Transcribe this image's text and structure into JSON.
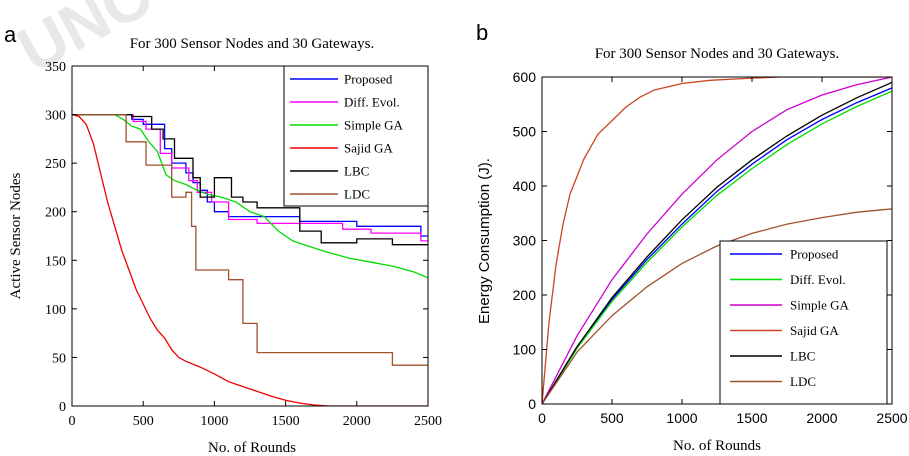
{
  "chart_data": [
    {
      "panel": "a",
      "type": "line",
      "title": "For 300 Sensor Nodes and 30 Gateways.",
      "xlabel": "No. of Rounds",
      "ylabel": "Active Sensor Nodes",
      "xlim": [
        0,
        2500
      ],
      "ylim": [
        0,
        350
      ],
      "xticks": [
        0,
        500,
        1000,
        1500,
        2000,
        2500
      ],
      "yticks": [
        0,
        50,
        100,
        150,
        200,
        250,
        300,
        350
      ],
      "legend_position": "top-right",
      "series": [
        {
          "name": "Proposed",
          "color": "#0000ff",
          "step": true,
          "points": [
            [
              0,
              300
            ],
            [
              420,
              300
            ],
            [
              420,
              295
            ],
            [
              500,
              295
            ],
            [
              500,
              290
            ],
            [
              650,
              290
            ],
            [
              650,
              265
            ],
            [
              700,
              265
            ],
            [
              700,
              250
            ],
            [
              800,
              250
            ],
            [
              800,
              240
            ],
            [
              850,
              240
            ],
            [
              850,
              230
            ],
            [
              900,
              230
            ],
            [
              900,
              222
            ],
            [
              950,
              222
            ],
            [
              950,
              210
            ],
            [
              1000,
              210
            ],
            [
              1000,
              200
            ],
            [
              1100,
              200
            ],
            [
              1100,
              195
            ],
            [
              1600,
              195
            ],
            [
              1600,
              190
            ],
            [
              2000,
              190
            ],
            [
              2000,
              185
            ],
            [
              2450,
              185
            ],
            [
              2450,
              175
            ],
            [
              2500,
              175
            ]
          ]
        },
        {
          "name": "Diff. Evol.",
          "color": "#ff00ff",
          "step": true,
          "points": [
            [
              0,
              300
            ],
            [
              430,
              300
            ],
            [
              430,
              293
            ],
            [
              520,
              293
            ],
            [
              520,
              285
            ],
            [
              620,
              285
            ],
            [
              620,
              260
            ],
            [
              700,
              260
            ],
            [
              700,
              245
            ],
            [
              820,
              245
            ],
            [
              820,
              232
            ],
            [
              880,
              232
            ],
            [
              880,
              220
            ],
            [
              980,
              220
            ],
            [
              980,
              210
            ],
            [
              1100,
              210
            ],
            [
              1100,
              192
            ],
            [
              1300,
              192
            ],
            [
              1300,
              188
            ],
            [
              1900,
              188
            ],
            [
              1900,
              182
            ],
            [
              2100,
              182
            ],
            [
              2100,
              178
            ],
            [
              2450,
              178
            ],
            [
              2450,
              170
            ],
            [
              2500,
              170
            ]
          ]
        },
        {
          "name": "Simple GA",
          "color": "#00dd00",
          "step": false,
          "points": [
            [
              0,
              300
            ],
            [
              300,
              300
            ],
            [
              360,
              295
            ],
            [
              420,
              288
            ],
            [
              480,
              285
            ],
            [
              540,
              272
            ],
            [
              600,
              262
            ],
            [
              660,
              238
            ],
            [
              720,
              232
            ],
            [
              800,
              228
            ],
            [
              880,
              222
            ],
            [
              950,
              218
            ],
            [
              1050,
              215
            ],
            [
              1150,
              210
            ],
            [
              1250,
              200
            ],
            [
              1350,
              195
            ],
            [
              1450,
              180
            ],
            [
              1550,
              170
            ],
            [
              1650,
              165
            ],
            [
              1800,
              158
            ],
            [
              1950,
              152
            ],
            [
              2100,
              148
            ],
            [
              2250,
              144
            ],
            [
              2400,
              138
            ],
            [
              2500,
              132
            ]
          ]
        },
        {
          "name": "Sajid GA",
          "color": "#ee0000",
          "step": false,
          "points": [
            [
              0,
              300
            ],
            [
              50,
              298
            ],
            [
              100,
              290
            ],
            [
              150,
              270
            ],
            [
              200,
              240
            ],
            [
              250,
              210
            ],
            [
              300,
              185
            ],
            [
              350,
              160
            ],
            [
              400,
              140
            ],
            [
              450,
              120
            ],
            [
              500,
              105
            ],
            [
              550,
              90
            ],
            [
              600,
              78
            ],
            [
              650,
              70
            ],
            [
              700,
              58
            ],
            [
              750,
              50
            ],
            [
              800,
              46
            ],
            [
              900,
              40
            ],
            [
              1000,
              33
            ],
            [
              1100,
              25
            ],
            [
              1200,
              20
            ],
            [
              1300,
              15
            ],
            [
              1400,
              10
            ],
            [
              1500,
              6
            ],
            [
              1600,
              3
            ],
            [
              1700,
              1
            ],
            [
              1800,
              0
            ],
            [
              2500,
              0
            ]
          ]
        },
        {
          "name": "LBC",
          "color": "#000000",
          "step": true,
          "points": [
            [
              0,
              300
            ],
            [
              420,
              300
            ],
            [
              420,
              298
            ],
            [
              560,
              298
            ],
            [
              560,
              285
            ],
            [
              640,
              285
            ],
            [
              640,
              275
            ],
            [
              720,
              275
            ],
            [
              720,
              255
            ],
            [
              850,
              255
            ],
            [
              850,
              235
            ],
            [
              900,
              235
            ],
            [
              900,
              215
            ],
            [
              1000,
              215
            ],
            [
              1000,
              235
            ],
            [
              1120,
              235
            ],
            [
              1120,
              215
            ],
            [
              1200,
              215
            ],
            [
              1200,
              210
            ],
            [
              1300,
              210
            ],
            [
              1300,
              204
            ],
            [
              1600,
              204
            ],
            [
              1600,
              180
            ],
            [
              1750,
              180
            ],
            [
              1750,
              168
            ],
            [
              2000,
              168
            ],
            [
              2000,
              172
            ],
            [
              2250,
              172
            ],
            [
              2250,
              166
            ],
            [
              2500,
              166
            ]
          ]
        },
        {
          "name": "LDC",
          "color": "#a0522d",
          "step": true,
          "points": [
            [
              0,
              300
            ],
            [
              380,
              300
            ],
            [
              380,
              272
            ],
            [
              520,
              272
            ],
            [
              520,
              248
            ],
            [
              700,
              248
            ],
            [
              700,
              215
            ],
            [
              800,
              215
            ],
            [
              800,
              220
            ],
            [
              840,
              220
            ],
            [
              840,
              185
            ],
            [
              870,
              185
            ],
            [
              870,
              140
            ],
            [
              1100,
              140
            ],
            [
              1100,
              130
            ],
            [
              1200,
              130
            ],
            [
              1200,
              85
            ],
            [
              1300,
              85
            ],
            [
              1300,
              55
            ],
            [
              2250,
              55
            ],
            [
              2250,
              42
            ],
            [
              2500,
              42
            ]
          ]
        }
      ]
    },
    {
      "panel": "b",
      "type": "line",
      "title": "For 300 Sensor Nodes and 30 Gateways.",
      "xlabel": "No. of Rounds",
      "ylabel": "Energy Consumption (J).",
      "xlim": [
        0,
        2500
      ],
      "ylim": [
        0,
        600
      ],
      "xticks": [
        0,
        500,
        1000,
        1500,
        2000,
        2500
      ],
      "yticks": [
        0,
        100,
        200,
        300,
        400,
        500,
        600
      ],
      "legend_position": "bottom-right",
      "series": [
        {
          "name": "Proposed",
          "color": "#0000ff",
          "points": [
            [
              0,
              0
            ],
            [
              250,
              105
            ],
            [
              500,
              192
            ],
            [
              750,
              265
            ],
            [
              1000,
              330
            ],
            [
              1250,
              390
            ],
            [
              1500,
              440
            ],
            [
              1750,
              485
            ],
            [
              2000,
              522
            ],
            [
              2250,
              553
            ],
            [
              2500,
              580
            ]
          ]
        },
        {
          "name": "Diff. Evol.",
          "color": "#00dd00",
          "points": [
            [
              0,
              0
            ],
            [
              250,
              102
            ],
            [
              500,
              188
            ],
            [
              750,
              260
            ],
            [
              1000,
              325
            ],
            [
              1250,
              383
            ],
            [
              1500,
              432
            ],
            [
              1750,
              476
            ],
            [
              2000,
              514
            ],
            [
              2250,
              546
            ],
            [
              2500,
              574
            ]
          ]
        },
        {
          "name": "Simple GA",
          "color": "#cc00cc",
          "points": [
            [
              0,
              0
            ],
            [
              250,
              125
            ],
            [
              500,
              228
            ],
            [
              750,
              312
            ],
            [
              1000,
              385
            ],
            [
              1250,
              448
            ],
            [
              1500,
              500
            ],
            [
              1750,
              540
            ],
            [
              2000,
              567
            ],
            [
              2250,
              586
            ],
            [
              2500,
              600
            ]
          ]
        },
        {
          "name": "Sajid GA",
          "color": "#cc4422",
          "points": [
            [
              0,
              0
            ],
            [
              50,
              150
            ],
            [
              100,
              255
            ],
            [
              150,
              330
            ],
            [
              200,
              385
            ],
            [
              300,
              450
            ],
            [
              400,
              495
            ],
            [
              500,
              520
            ],
            [
              600,
              545
            ],
            [
              700,
              563
            ],
            [
              800,
              576
            ],
            [
              1000,
              588
            ],
            [
              1200,
              594
            ],
            [
              1500,
              598
            ],
            [
              1700,
              600
            ],
            [
              2500,
              600
            ]
          ]
        },
        {
          "name": "LBC",
          "color": "#000000",
          "points": [
            [
              0,
              0
            ],
            [
              250,
              105
            ],
            [
              500,
              195
            ],
            [
              750,
              270
            ],
            [
              1000,
              338
            ],
            [
              1250,
              398
            ],
            [
              1500,
              448
            ],
            [
              1750,
              492
            ],
            [
              2000,
              530
            ],
            [
              2250,
              562
            ],
            [
              2500,
              590
            ]
          ]
        },
        {
          "name": "LDC",
          "color": "#a0522d",
          "points": [
            [
              0,
              0
            ],
            [
              250,
              95
            ],
            [
              500,
              162
            ],
            [
              750,
              215
            ],
            [
              1000,
              258
            ],
            [
              1250,
              290
            ],
            [
              1500,
              313
            ],
            [
              1750,
              330
            ],
            [
              2000,
              342
            ],
            [
              2250,
              352
            ],
            [
              2500,
              358
            ]
          ]
        }
      ]
    }
  ],
  "panel_labels": [
    "a",
    "b"
  ],
  "watermark": "UNC"
}
